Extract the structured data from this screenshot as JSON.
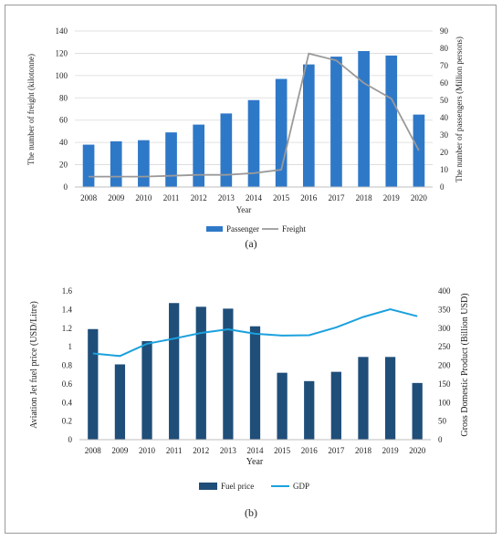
{
  "chart_data": [
    {
      "type": "bar+line",
      "panel_label": "(a)",
      "xlabel": "Year",
      "ylabel_left": "The number of freight (kilotonne)",
      "ylabel_right": "The number of passengers (Million persons)",
      "ylim_left": [
        0,
        140
      ],
      "yticks_left": [
        "0",
        "20",
        "40",
        "60",
        "80",
        "100",
        "120",
        "140"
      ],
      "ylim_right": [
        0,
        90
      ],
      "yticks_right": [
        "0",
        "10",
        "20",
        "30",
        "40",
        "50",
        "60",
        "70",
        "80",
        "90"
      ],
      "categories": [
        "2008",
        "2009",
        "2010",
        "2011",
        "2012",
        "2013",
        "2014",
        "2015",
        "2016",
        "2017",
        "2018",
        "2019",
        "2020"
      ],
      "series": [
        {
          "name": "Passenger",
          "kind": "bar",
          "axis": "left",
          "color": "#2e78c8",
          "values": [
            38,
            41,
            42,
            49,
            56,
            66,
            78,
            97,
            110,
            117,
            122,
            118,
            65
          ]
        },
        {
          "name": "Freight",
          "kind": "line",
          "axis": "right",
          "color": "#9a9a9a",
          "values": [
            6,
            6,
            6,
            6.5,
            7,
            7,
            8,
            10,
            77,
            73,
            60,
            51,
            21
          ]
        }
      ],
      "legend": "bottom",
      "grid": true
    },
    {
      "type": "bar+line",
      "panel_label": "(b)",
      "xlabel": "Year",
      "ylabel_left": "Aviation Jet fuel price (USD/Litre)",
      "ylabel_right": "Gross Domestic Product (Billion USD)",
      "ylim_left": [
        0,
        1.6
      ],
      "yticks_left": [
        "0",
        "0.2",
        "0.4",
        "0.6",
        "0.8",
        "1",
        "1.2",
        "1.4",
        "1.6"
      ],
      "ylim_right": [
        0,
        400
      ],
      "yticks_right": [
        "0",
        "50",
        "100",
        "150",
        "200",
        "250",
        "300",
        "350",
        "400"
      ],
      "categories": [
        "2008",
        "2009",
        "2010",
        "2011",
        "2012",
        "2013",
        "2014",
        "2015",
        "2016",
        "2017",
        "2018",
        "2019",
        "2020"
      ],
      "series": [
        {
          "name": "Fuel price",
          "kind": "bar",
          "axis": "left",
          "color": "#1f4e79",
          "values": [
            1.19,
            0.81,
            1.06,
            1.47,
            1.43,
            1.41,
            1.22,
            0.72,
            0.63,
            0.73,
            0.89,
            0.89,
            0.61
          ]
        },
        {
          "name": "GDP",
          "kind": "line",
          "axis": "right",
          "color": "#1ba1dd",
          "values": [
            232,
            225,
            258,
            272,
            287,
            297,
            285,
            280,
            281,
            302,
            330,
            351,
            332
          ]
        }
      ],
      "legend": "bottom",
      "grid": false
    }
  ]
}
